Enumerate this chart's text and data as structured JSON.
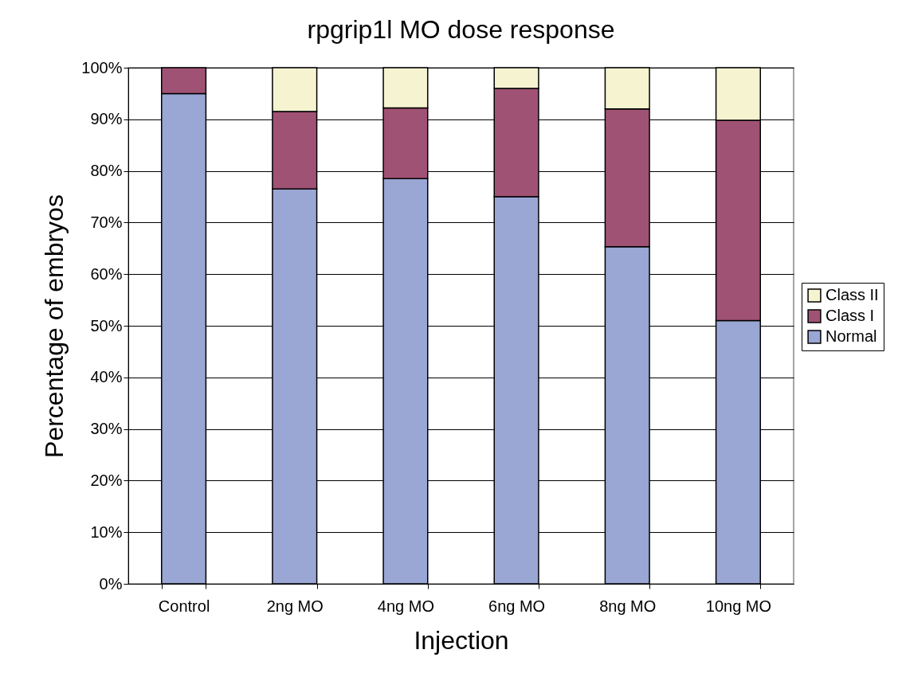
{
  "chart_data": {
    "type": "bar",
    "title": "rpgrip1l MO dose response",
    "xlabel": "Injection",
    "ylabel": "Percentage of embryos",
    "categories": [
      "Control",
      "2ng MO",
      "4ng MO",
      "6ng MO",
      "8ng MO",
      "10ng MO"
    ],
    "series": [
      {
        "name": "Normal",
        "color": "#9aa6d4",
        "values": [
          95,
          76.5,
          78.5,
          75,
          65.3,
          51
        ]
      },
      {
        "name": "Class I",
        "color": "#a05275",
        "values": [
          5,
          15,
          13.7,
          21,
          26.7,
          38.8
        ]
      },
      {
        "name": "Class II",
        "color": "#f5f3d0",
        "values": [
          0,
          8.5,
          7.8,
          4,
          8,
          10.2
        ]
      }
    ],
    "stacked": true,
    "ylim": [
      0,
      100
    ],
    "yticks": [
      {
        "value": 0,
        "label": "0%"
      },
      {
        "value": 10,
        "label": "10%"
      },
      {
        "value": 20,
        "label": "20%"
      },
      {
        "value": 30,
        "label": "30%"
      },
      {
        "value": 40,
        "label": "40%"
      },
      {
        "value": 50,
        "label": "50%"
      },
      {
        "value": 60,
        "label": "60%"
      },
      {
        "value": 70,
        "label": "70%"
      },
      {
        "value": 80,
        "label": "80%"
      },
      {
        "value": 90,
        "label": "90%"
      },
      {
        "value": 100,
        "label": "100%"
      }
    ],
    "grid": "y",
    "legend": "right"
  }
}
